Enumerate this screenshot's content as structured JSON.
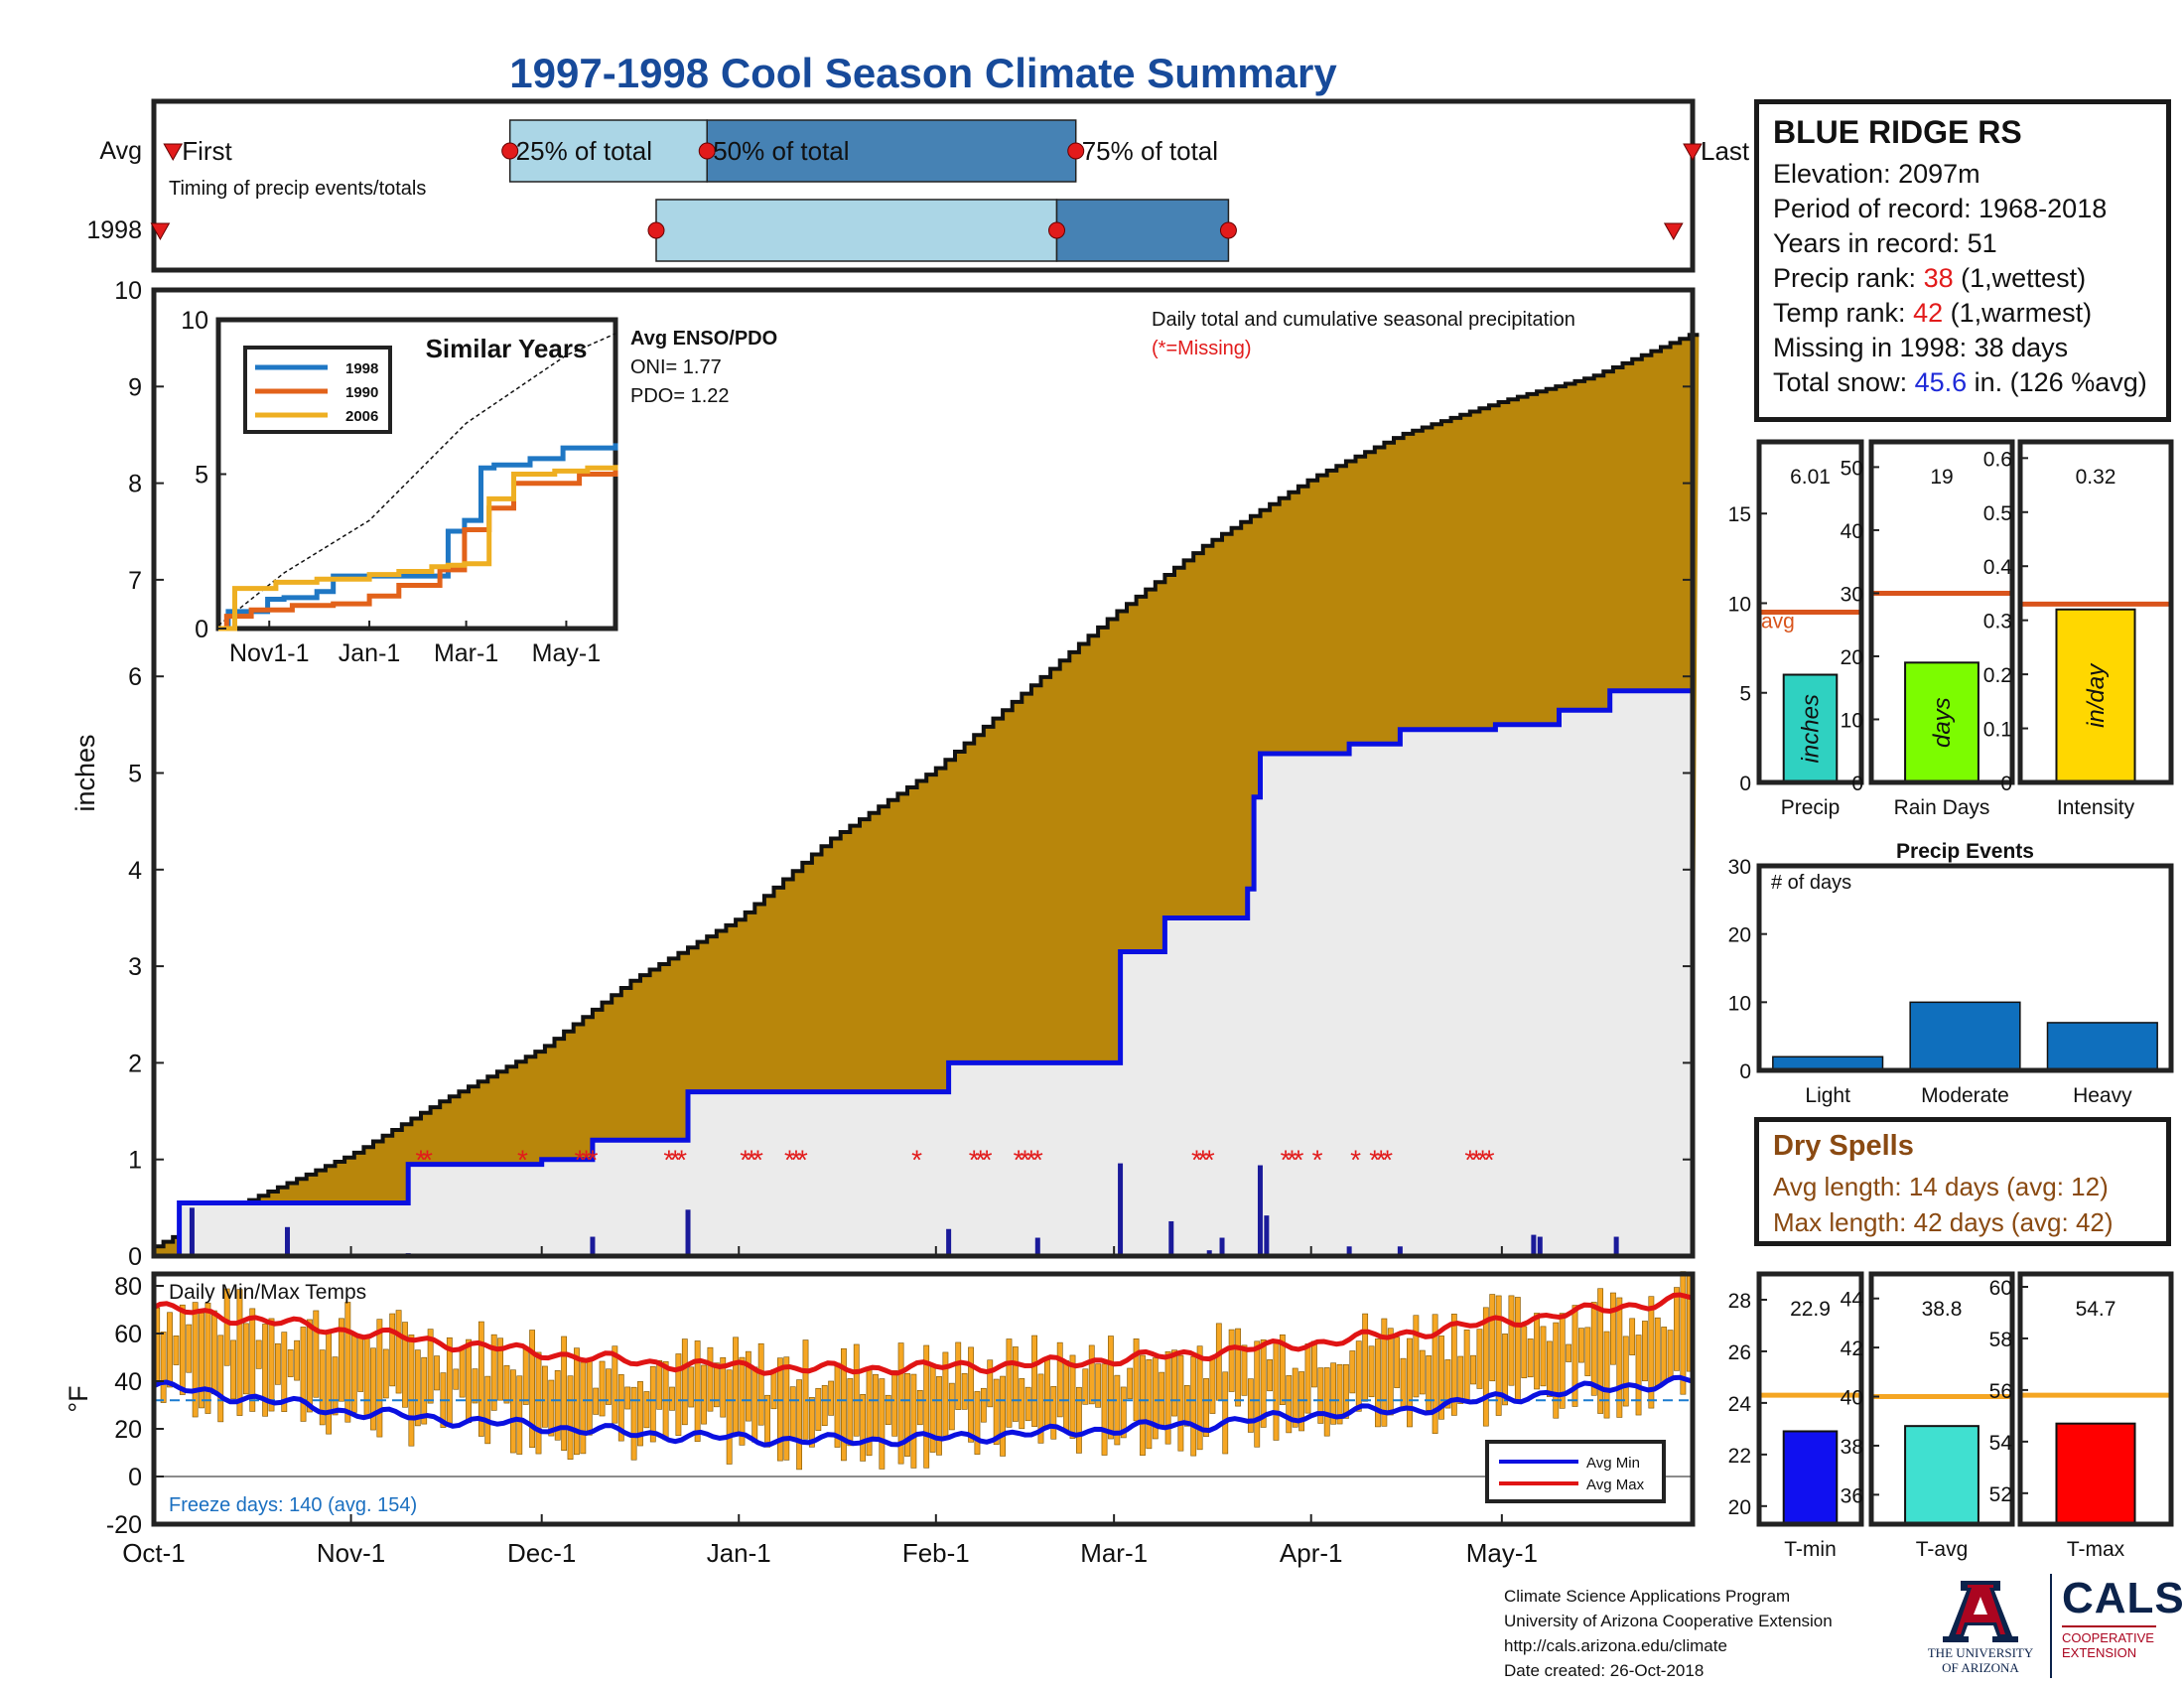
{
  "title": "1997-1998 Cool Season Climate Summary",
  "colors": {
    "title": "#174a9a",
    "precip_fill": "#b8860b",
    "avg_fill": "#ebebeb",
    "avg_line": "#0a10e0",
    "daily_bar": "#1a1a9a",
    "missing": "#e21b1b",
    "temp_bar": "#f5a623",
    "avg_min_line": "#0a10e0",
    "avg_max_line": "#e01414",
    "freeze_line": "#1a7bd0",
    "similar_1998": "#1f77c4",
    "similar_1990": "#e2621a",
    "similar_2006": "#eeaf22",
    "timing_light": "#abd6e6",
    "timing_dark": "#4682b4",
    "event_bar": "#0f6fbd",
    "precip_avg_line": "#d9541c",
    "temp_avg_line": "#f5a623",
    "precip_bar": "#2fd1c1",
    "raindays_bar": "#7cfc00",
    "intensity_bar": "#ffd700",
    "tmin_bar": "#1010f0",
    "tavg_bar": "#40e0d0",
    "tmax_bar": "#ff0000"
  },
  "station": {
    "name": "BLUE RIDGE RS",
    "elevation": "Elevation: 2097m",
    "period": "Period of record: 1968-2018",
    "years": "Years in record: 51",
    "precip_rank_label": "Precip rank: ",
    "precip_rank_value": "38",
    "precip_rank_note": " (1,wettest)",
    "temp_rank_label": "Temp rank: ",
    "temp_rank_value": "42",
    "temp_rank_note": " (1,warmest)",
    "missing": "Missing in 1998: 38 days",
    "snow_label": "Total snow: ",
    "snow_value": "45.6",
    "snow_note": " in. (126 %avg)"
  },
  "dry_spells": {
    "title": "Dry Spells",
    "avg_length": "Avg length: 14 days (avg: 12)",
    "max_length": "Max length: 42 days (avg: 42)"
  },
  "credits": {
    "line1": "Climate Science Applications Program",
    "line2": "University of Arizona Cooperative Extension",
    "line3": "http://cals.arizona.edu/climate",
    "line4": " Date created: 26-Oct-2018"
  },
  "logos": {
    "ua_line1": "THE UNIVERSITY",
    "ua_line2": "OF ARIZONA",
    "cals": "CALS",
    "coop_line1": "COOPERATIVE",
    "coop_line2": "EXTENSION"
  },
  "chart_data": [
    {
      "id": "timing",
      "type": "bar",
      "title": "",
      "row_labels": [
        "Avg",
        "1998"
      ],
      "annotation": "Timing of precip events/totals",
      "avg": {
        "first": "Oct-4",
        "p25": "Nov-26",
        "p50": "Dec-27",
        "p75": "Feb-23",
        "last": "May-31",
        "labels": {
          "first": "First",
          "p25": "25% of total",
          "p50": "50% of total",
          "p75": "75% of total",
          "last": "Last"
        }
      },
      "y1998": {
        "first": "Oct-2",
        "p25": "Dec-19",
        "p50": "Feb-20",
        "p75": "Mar-19",
        "last": "May-28"
      }
    },
    {
      "id": "main-precip",
      "type": "area",
      "ylabel": "inches",
      "ylim": [
        0,
        10
      ],
      "yticks": [
        0,
        1,
        2,
        3,
        4,
        5,
        6,
        7,
        8,
        9,
        10
      ],
      "xtick_labels": [
        "Oct-1",
        "Nov-1",
        "Dec-1",
        "Jan-1",
        "Feb-1",
        "Mar-1",
        "Apr-1",
        "May-1"
      ],
      "xtick_days": [
        0,
        31,
        61,
        92,
        123,
        151,
        182,
        212
      ],
      "x_range_days": [
        0,
        242
      ],
      "annotation": "Daily total and cumulative seasonal precipitation",
      "missing_note": "(*=Missing)",
      "avg_cumulative": {
        "x": [
          "Oct-1",
          "Oct-15",
          "Nov-1",
          "Nov-15",
          "Dec-1",
          "Dec-15",
          "Jan-1",
          "Jan-15",
          "Feb-1",
          "Feb-15",
          "Mar-1",
          "Mar-15",
          "Apr-1",
          "Apr-15",
          "May-1",
          "May-15",
          "May-31"
        ],
        "y": [
          0.1,
          0.55,
          1.05,
          1.6,
          2.15,
          2.85,
          3.5,
          4.3,
          5.05,
          5.85,
          6.65,
          7.35,
          8.05,
          8.5,
          8.85,
          9.1,
          9.55
        ]
      },
      "cumulative_1998": {
        "x": [
          "Oct-1",
          "Oct-5",
          "Oct-12",
          "Oct-22",
          "Nov-10",
          "Nov-12",
          "Dec-1",
          "Dec-9",
          "Dec-23",
          "Dec-24",
          "Jan-1",
          "Feb-1",
          "Feb-3",
          "Feb-16",
          "Mar-2",
          "Mar-9",
          "Mar-15",
          "Mar-22",
          "Mar-23",
          "Mar-24",
          "Apr-1",
          "Apr-7",
          "Apr-15",
          "Apr-30",
          "May-10",
          "May-18",
          "May-31"
        ],
        "y": [
          0,
          0.55,
          0.55,
          0.55,
          0.95,
          0.95,
          1.0,
          1.2,
          1.2,
          1.7,
          1.7,
          1.7,
          2.0,
          2.0,
          3.15,
          3.5,
          3.5,
          3.8,
          4.75,
          5.2,
          5.2,
          5.3,
          5.45,
          5.5,
          5.65,
          5.85,
          6.0
        ]
      },
      "daily_1998": {
        "x": [
          "Oct-7",
          "Oct-22",
          "Nov-10",
          "Dec-1",
          "Dec-9",
          "Dec-24",
          "Jan-14",
          "Feb-3",
          "Feb-17",
          "Mar-2",
          "Mar-10",
          "Mar-16",
          "Mar-18",
          "Mar-24",
          "Mar-25",
          "Apr-7",
          "Apr-15",
          "May-6",
          "May-7",
          "May-19"
        ],
        "y": [
          0.5,
          0.3,
          0.03,
          0.02,
          0.2,
          0.48,
          0.02,
          0.28,
          0.19,
          0.96,
          0.36,
          0.06,
          0.19,
          0.94,
          0.42,
          0.1,
          0.1,
          0.22,
          0.2,
          0.2
        ]
      },
      "missing_days_1998": [
        "Nov-12",
        "Nov-13",
        "Nov-28",
        "Dec-7",
        "Dec-8",
        "Dec-9",
        "Dec-21",
        "Dec-22",
        "Dec-23",
        "Jan-2",
        "Jan-3",
        "Jan-4",
        "Jan-9",
        "Jan-10",
        "Jan-11",
        "Jan-29",
        "Feb-7",
        "Feb-8",
        "Feb-9",
        "Feb-14",
        "Feb-15",
        "Feb-16",
        "Feb-17",
        "Mar-14",
        "Mar-15",
        "Mar-16",
        "Mar-28",
        "Mar-29",
        "Mar-30",
        "Apr-2",
        "Apr-8",
        "Apr-11",
        "Apr-12",
        "Apr-13",
        "Apr-26",
        "Apr-27",
        "Apr-28",
        "Apr-29"
      ]
    },
    {
      "id": "similar-years",
      "type": "line",
      "title": "Similar Years",
      "ylim": [
        0,
        10
      ],
      "yticks": [
        0,
        5,
        10
      ],
      "xtick_labels": [
        "Nov1-1",
        "Jan-1",
        "Mar-1",
        "May-1"
      ],
      "series": [
        {
          "name": "1998",
          "x": [
            0,
            6,
            14,
            30,
            40,
            60,
            70,
            96,
            140,
            150,
            160,
            168,
            190,
            210,
            242
          ],
          "y": [
            0,
            0.55,
            0.55,
            0.95,
            1.0,
            1.2,
            1.7,
            1.7,
            3.15,
            3.5,
            5.2,
            5.3,
            5.5,
            5.85,
            6.0
          ]
        },
        {
          "name": "1990",
          "x": [
            0,
            5,
            20,
            45,
            70,
            92,
            110,
            135,
            150,
            165,
            180,
            200,
            220,
            242
          ],
          "y": [
            0,
            0.4,
            0.6,
            0.75,
            0.8,
            1.05,
            1.4,
            1.9,
            3.2,
            3.9,
            4.7,
            4.7,
            5.0,
            5.15
          ]
        },
        {
          "name": "2006",
          "x": [
            0,
            10,
            35,
            60,
            92,
            110,
            130,
            140,
            150,
            165,
            180,
            205,
            225,
            242
          ],
          "y": [
            0,
            1.3,
            1.5,
            1.6,
            1.75,
            1.85,
            2.0,
            2.05,
            2.1,
            4.2,
            5.0,
            5.1,
            5.2,
            5.3
          ]
        }
      ],
      "avg_dashed": {
        "x": [
          0,
          40,
          92,
          151,
          212,
          242
        ],
        "y": [
          0.1,
          1.8,
          3.5,
          6.65,
          8.85,
          9.55
        ]
      },
      "legend_position": "top-left"
    },
    {
      "id": "enso",
      "type": "table",
      "title": "Avg ENSO/PDO",
      "rows": [
        "ONI= 1.77",
        "PDO= 1.22"
      ]
    },
    {
      "id": "precip-bar",
      "type": "bar",
      "xlabel": "Precip",
      "value": 6.01,
      "value_label": "6.01",
      "avg": 9.5,
      "avg_label": "avg",
      "ylim": [
        0,
        19
      ],
      "yticks": [
        0,
        5,
        10,
        15
      ],
      "bar_text": "inches"
    },
    {
      "id": "raindays-bar",
      "type": "bar",
      "xlabel": "Rain Days",
      "value": 19,
      "value_label": "19",
      "avg": 30,
      "ylim": [
        0,
        54
      ],
      "yticks": [
        0,
        10,
        20,
        30,
        40,
        50
      ],
      "bar_text": "days"
    },
    {
      "id": "intensity-bar",
      "type": "bar",
      "xlabel": "Intensity",
      "value": 0.32,
      "value_label": "0.32",
      "avg": 0.33,
      "ylim": [
        0,
        0.63
      ],
      "yticks": [
        0,
        0.1,
        0.2,
        0.3,
        0.4,
        0.5,
        0.6
      ],
      "bar_text": "in/day"
    },
    {
      "id": "precip-events",
      "type": "bar",
      "title": "Precip Events",
      "ylabel": "# of days",
      "categories": [
        "Light",
        "Moderate",
        "Heavy"
      ],
      "values": [
        2,
        10,
        7
      ],
      "ylim": [
        0,
        30
      ],
      "yticks": [
        0,
        10,
        20,
        30
      ]
    },
    {
      "id": "temps",
      "type": "bar",
      "title": "Daily Min/Max Temps",
      "ylabel": "°F",
      "ylim": [
        -20,
        85
      ],
      "yticks": [
        -20,
        0,
        20,
        40,
        60,
        80
      ],
      "freeze_note": "Freeze days: 140 (avg. 154)",
      "freeze_line": 32,
      "legend": [
        "Avg Min",
        "Avg Max"
      ],
      "legend_position": "bottom-right",
      "avg_min": {
        "x": [
          0,
          15,
          31,
          46,
          61,
          76,
          92,
          107,
          123,
          137,
          151,
          166,
          182,
          197,
          212,
          227,
          242
        ],
        "y": [
          38,
          33,
          27,
          24,
          21,
          18,
          16,
          15,
          16,
          18,
          20,
          22,
          26,
          28,
          33,
          37,
          40
        ]
      },
      "avg_max": {
        "x": [
          0,
          15,
          31,
          46,
          61,
          76,
          92,
          107,
          123,
          137,
          151,
          166,
          182,
          197,
          212,
          227,
          242
        ],
        "y": [
          71,
          66,
          61,
          56,
          52,
          48,
          46,
          45,
          46,
          47,
          49,
          52,
          56,
          60,
          65,
          70,
          75
        ]
      }
    },
    {
      "id": "tmin-bar",
      "type": "bar",
      "xlabel": "T-min",
      "value": 22.9,
      "value_label": "22.9",
      "avg": 24.3,
      "ylim": [
        19.3,
        29
      ],
      "yticks": [
        20,
        22,
        24,
        26,
        28
      ]
    },
    {
      "id": "tavg-bar",
      "type": "bar",
      "xlabel": "T-avg",
      "value": 38.8,
      "value_label": "38.8",
      "avg": 40.0,
      "ylim": [
        34.8,
        45
      ],
      "yticks": [
        36,
        38,
        40,
        42,
        44
      ]
    },
    {
      "id": "tmax-bar",
      "type": "bar",
      "xlabel": "T-max",
      "value": 54.7,
      "value_label": "54.7",
      "avg": 55.8,
      "ylim": [
        50.8,
        60.5
      ],
      "yticks": [
        52,
        54,
        56,
        58,
        60
      ]
    }
  ]
}
